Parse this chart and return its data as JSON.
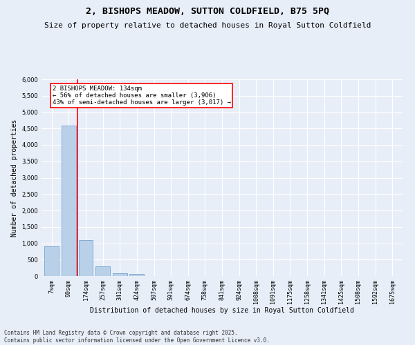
{
  "title1": "2, BISHOPS MEADOW, SUTTON COLDFIELD, B75 5PQ",
  "title2": "Size of property relative to detached houses in Royal Sutton Coldfield",
  "xlabel": "Distribution of detached houses by size in Royal Sutton Coldfield",
  "ylabel": "Number of detached properties",
  "bar_labels": [
    "7sqm",
    "90sqm",
    "174sqm",
    "257sqm",
    "341sqm",
    "424sqm",
    "507sqm",
    "591sqm",
    "674sqm",
    "758sqm",
    "841sqm",
    "924sqm",
    "1008sqm",
    "1091sqm",
    "1175sqm",
    "1258sqm",
    "1341sqm",
    "1425sqm",
    "1508sqm",
    "1592sqm",
    "1675sqm"
  ],
  "bar_values": [
    900,
    4600,
    1090,
    300,
    90,
    55,
    0,
    0,
    0,
    0,
    0,
    0,
    0,
    0,
    0,
    0,
    0,
    0,
    0,
    0,
    0
  ],
  "bar_color": "#b8d0e8",
  "bar_edge_color": "#6699cc",
  "vline_x": 1.5,
  "vline_color": "red",
  "annotation_text": "2 BISHOPS MEADOW: 134sqm\n← 56% of detached houses are smaller (3,906)\n43% of semi-detached houses are larger (3,017) →",
  "annotation_box_color": "white",
  "annotation_box_edge_color": "red",
  "ylim": [
    0,
    6000
  ],
  "yticks": [
    0,
    500,
    1000,
    1500,
    2000,
    2500,
    3000,
    3500,
    4000,
    4500,
    5000,
    5500,
    6000
  ],
  "footer": "Contains HM Land Registry data © Crown copyright and database right 2025.\nContains public sector information licensed under the Open Government Licence v3.0.",
  "background_color": "#e8eef8",
  "grid_color": "white",
  "title_fontsize": 9.5,
  "subtitle_fontsize": 8,
  "axis_label_fontsize": 7,
  "tick_fontsize": 6,
  "footer_fontsize": 5.5,
  "annotation_fontsize": 6.5
}
